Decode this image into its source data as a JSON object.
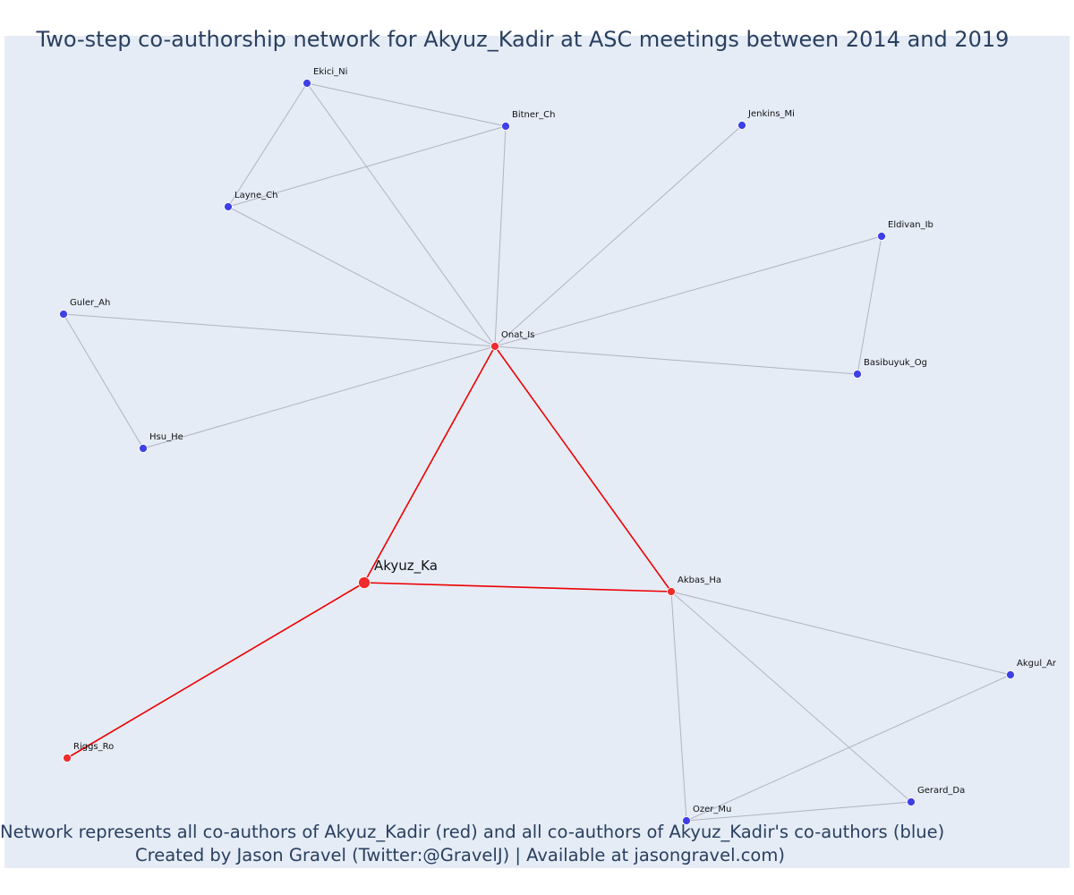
{
  "title": "Two-step co-authorship network for Akyuz_Kadir at ASC meetings between 2014 and 2019",
  "caption_line1": "Network represents all co-authors of Akyuz_Kadir (red) and all co-authors of Akyuz_Kadir's co-authors (blue)",
  "caption_line2": "Created by Jason Gravel (Twitter:@GravelJ) | Available at jasongravel.com)",
  "colors": {
    "background": "#e5ecf6",
    "first_degree": "#ef2b2b",
    "second_degree": "#3f3fe6",
    "first_degree_edge": "#ee0000",
    "second_degree_edge": "#b3b3c0"
  },
  "nodes": [
    {
      "id": "Akyuz_Ka",
      "group": "focal"
    },
    {
      "id": "Onat_Is",
      "group": "first"
    },
    {
      "id": "Akbas_Ha",
      "group": "first"
    },
    {
      "id": "Riggs_Ro",
      "group": "first"
    },
    {
      "id": "Ekici_Ni",
      "group": "second"
    },
    {
      "id": "Bitner_Ch",
      "group": "second"
    },
    {
      "id": "Jenkins_Mi",
      "group": "second"
    },
    {
      "id": "Layne_Ch",
      "group": "second"
    },
    {
      "id": "Eldivan_Ib",
      "group": "second"
    },
    {
      "id": "Guler_Ah",
      "group": "second"
    },
    {
      "id": "Basibuyuk_Og",
      "group": "second"
    },
    {
      "id": "Hsu_He",
      "group": "second"
    },
    {
      "id": "Akgul_Ar",
      "group": "second"
    },
    {
      "id": "Gerard_Da",
      "group": "second"
    },
    {
      "id": "Ozer_Mu",
      "group": "second"
    }
  ],
  "edges": [
    {
      "source": "Akyuz_Ka",
      "target": "Onat_Is",
      "type": "first"
    },
    {
      "source": "Akyuz_Ka",
      "target": "Akbas_Ha",
      "type": "first"
    },
    {
      "source": "Akyuz_Ka",
      "target": "Riggs_Ro",
      "type": "first"
    },
    {
      "source": "Onat_Is",
      "target": "Akbas_Ha",
      "type": "first"
    },
    {
      "source": "Onat_Is",
      "target": "Ekici_Ni",
      "type": "second"
    },
    {
      "source": "Onat_Is",
      "target": "Bitner_Ch",
      "type": "second"
    },
    {
      "source": "Onat_Is",
      "target": "Jenkins_Mi",
      "type": "second"
    },
    {
      "source": "Onat_Is",
      "target": "Layne_Ch",
      "type": "second"
    },
    {
      "source": "Onat_Is",
      "target": "Eldivan_Ib",
      "type": "second"
    },
    {
      "source": "Onat_Is",
      "target": "Guler_Ah",
      "type": "second"
    },
    {
      "source": "Onat_Is",
      "target": "Basibuyuk_Og",
      "type": "second"
    },
    {
      "source": "Onat_Is",
      "target": "Hsu_He",
      "type": "second"
    },
    {
      "source": "Ekici_Ni",
      "target": "Bitner_Ch",
      "type": "second"
    },
    {
      "source": "Ekici_Ni",
      "target": "Layne_Ch",
      "type": "second"
    },
    {
      "source": "Layne_Ch",
      "target": "Bitner_Ch",
      "type": "second"
    },
    {
      "source": "Eldivan_Ib",
      "target": "Basibuyuk_Og",
      "type": "second"
    },
    {
      "source": "Guler_Ah",
      "target": "Hsu_He",
      "type": "second"
    },
    {
      "source": "Akbas_Ha",
      "target": "Akgul_Ar",
      "type": "second"
    },
    {
      "source": "Akbas_Ha",
      "target": "Gerard_Da",
      "type": "second"
    },
    {
      "source": "Akbas_Ha",
      "target": "Ozer_Mu",
      "type": "second"
    },
    {
      "source": "Akgul_Ar",
      "target": "Ozer_Mu",
      "type": "second"
    },
    {
      "source": "Gerard_Da",
      "target": "Ozer_Mu",
      "type": "second"
    }
  ]
}
